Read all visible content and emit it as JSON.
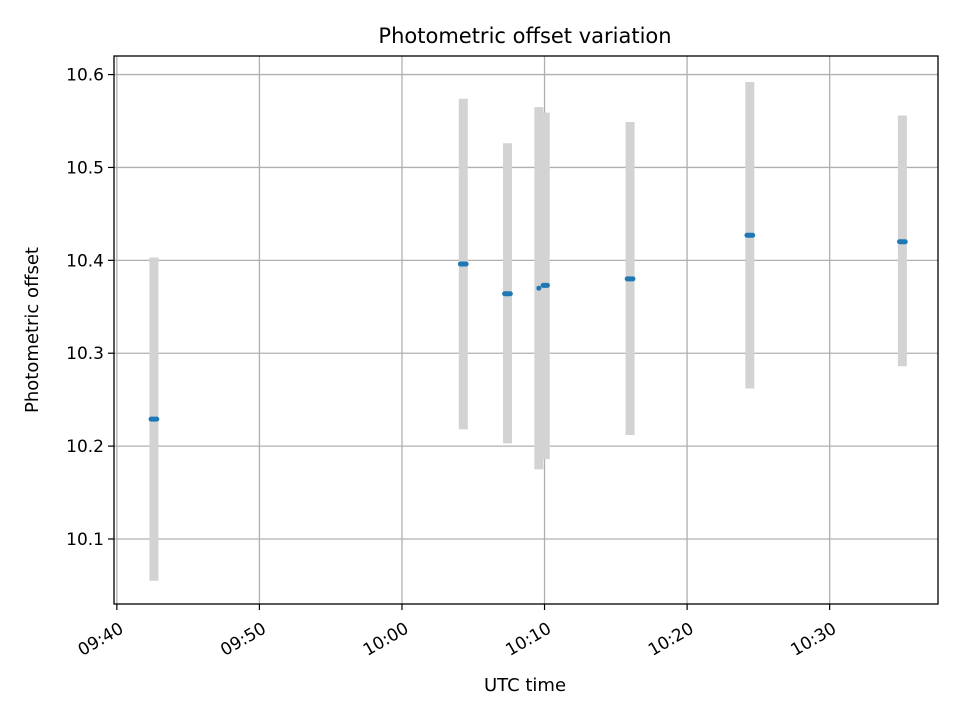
{
  "chart_data": {
    "type": "scatter",
    "title": "Photometric offset variation",
    "xlabel": "UTC time",
    "ylabel": "Photometric offset",
    "grid": true,
    "xlim": [
      "09:39.8",
      "10:37.6"
    ],
    "ylim": [
      10.03,
      10.62
    ],
    "x_ticks": [
      "09:40",
      "09:50",
      "10:00",
      "10:10",
      "10:20",
      "10:30"
    ],
    "y_ticks": [
      "10.1",
      "10.2",
      "10.3",
      "10.4",
      "10.5",
      "10.6"
    ],
    "colors": {
      "marker": "#1f77b4",
      "errorbar": "#d3d3d3"
    },
    "series": [
      {
        "points": [
          {
            "x": "09:42.4",
            "x_end": "09:42.8",
            "y": 10.229,
            "ymin": 10.055,
            "ymax": 10.403
          },
          {
            "x": "10:04.1",
            "x_end": "10:04.5",
            "y": 10.396,
            "ymin": 10.218,
            "ymax": 10.574
          },
          {
            "x": "10:07.2",
            "x_end": "10:07.6",
            "y": 10.364,
            "ymin": 10.203,
            "ymax": 10.526
          },
          {
            "x": "10:09.6",
            "x_end": "10:09.6",
            "y": 10.37,
            "ymin": 10.175,
            "ymax": 10.565
          },
          {
            "x": "10:09.9",
            "x_end": "10:10.2",
            "y": 10.373,
            "ymin": 10.186,
            "ymax": 10.559
          },
          {
            "x": "10:15.8",
            "x_end": "10:16.2",
            "y": 10.38,
            "ymin": 10.212,
            "ymax": 10.549
          },
          {
            "x": "10:24.2",
            "x_end": "10:24.6",
            "y": 10.427,
            "ymin": 10.262,
            "ymax": 10.592
          },
          {
            "x": "10:34.9",
            "x_end": "10:35.3",
            "y": 10.42,
            "ymin": 10.286,
            "ymax": 10.556
          }
        ]
      }
    ]
  }
}
